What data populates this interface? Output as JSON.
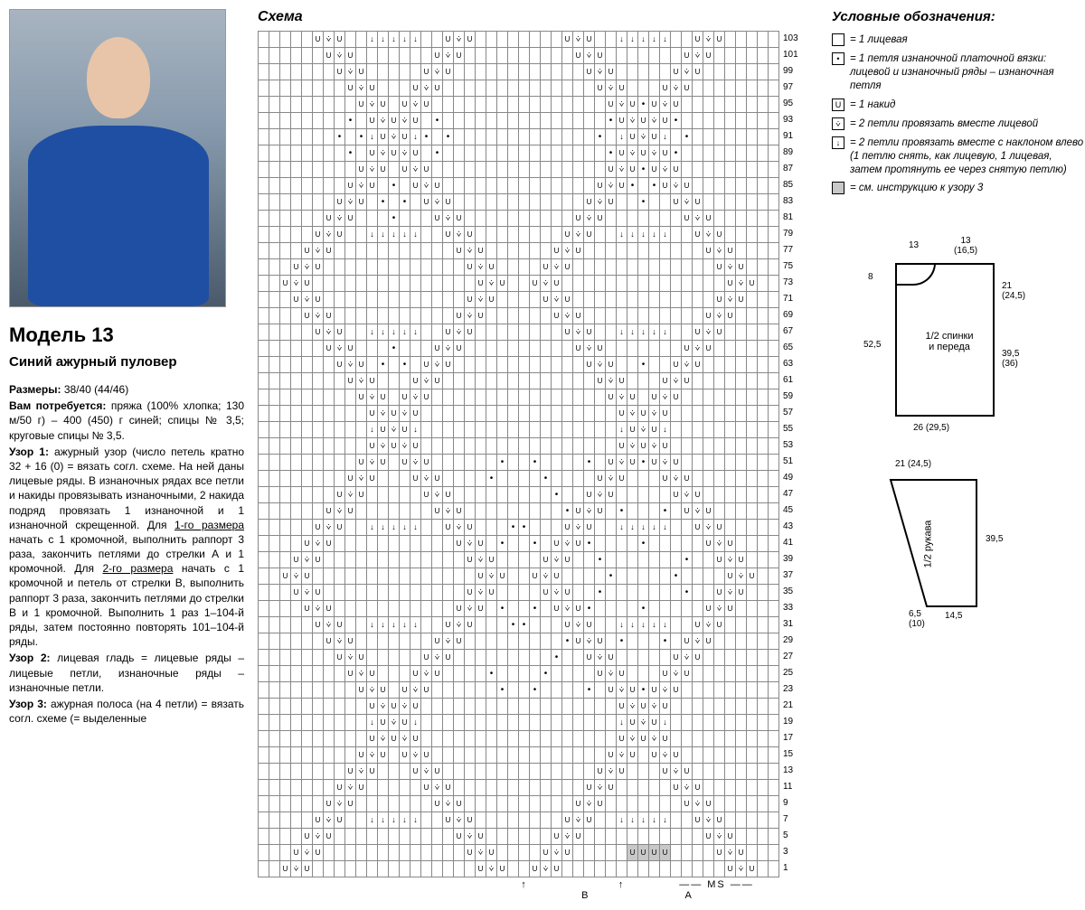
{
  "left": {
    "model_title": "Модель 13",
    "subtitle": "Синий ажурный пуловер",
    "sizes_label": "Размеры:",
    "sizes": "38/40 (44/46)",
    "need_label": "Вам потребуется:",
    "need_text": "пряжа (100% хлопка; 130 м/50 г) – 400 (450) г синей; спицы № 3,5; круговые спицы № 3,5.",
    "uzor1_label": "Узор 1:",
    "uzor1_text": "ажурный узор (число петель кратно 32 + 16 (0) = вязать согл. схеме. На ней даны лицевые ряды. В изнаночных рядах все петли и накиды провязывать изнаночными, 2 накида подряд провязать 1 изнаночной и 1 изнаночной скрещенной. Для ",
    "size1_u": "1-го размера",
    "uzor1_text2": " начать с 1 кромочной, выполнить раппорт 3 раза, закончить петлями до стрелки А и 1 кромочной. Для ",
    "size2_u": "2-го размера",
    "uzor1_text3": " начать с 1 кромочной и петель от стрелки В, выполнить раппорт 3 раза, закончить петлями до стрелки В и 1 кромочной. Выполнить 1 раз 1–104-й ряды, затем постоянно повторять 101–104-й ряды.",
    "uzor2_label": "Узор 2:",
    "uzor2_text": "лицевая гладь = лицевые ряды – лицевые петли, изнаночные ряды – изнаночные петли.",
    "uzor3_label": "Узор 3:",
    "uzor3_text": "ажурная полоса (на 4 петли) = вязать согл. схеме (= выделенные"
  },
  "center": {
    "title": "Схема",
    "row_numbers": [
      103,
      101,
      99,
      97,
      95,
      93,
      91,
      89,
      87,
      85,
      83,
      81,
      79,
      77,
      75,
      73,
      71,
      69,
      67,
      65,
      63,
      61,
      59,
      57,
      55,
      53,
      51,
      49,
      47,
      45,
      43,
      41,
      39,
      37,
      35,
      33,
      31,
      29,
      27,
      25,
      23,
      21,
      19,
      17,
      15,
      13,
      11,
      9,
      7,
      5,
      3,
      1
    ],
    "ms_label": "MS",
    "arrow_a": "A",
    "arrow_b": "B"
  },
  "legend": {
    "title": "Условные обозначения:",
    "items": [
      {
        "sym": "",
        "text": "= 1 лицевая"
      },
      {
        "sym": "•",
        "text": "= 1 петля изнаночной платочной вязки: лицевой и изнаночный ряды – изнаночная петля"
      },
      {
        "sym": "U",
        "text": "= 1 накид"
      },
      {
        "sym": "⩒",
        "text": "= 2 петли провязать вместе лицевой"
      },
      {
        "sym": "↓",
        "text": "= 2 петли провязать вместе с наклоном влево (1 петлю снять, как лицевую, 1 лицевая, затем протянуть ее через снятую петлю)"
      },
      {
        "sym": "",
        "gray": true,
        "text": "= см. инструкцию к узору 3"
      }
    ]
  },
  "schematic": {
    "body": {
      "top_left": "13",
      "top_right": "13\n(16,5)",
      "left_top": "8",
      "left_main": "52,5",
      "right_top": "21\n(24,5)",
      "right_main": "39,5\n(36)",
      "bottom": "26 (29,5)",
      "label": "1/2 спинки\nи переда"
    },
    "sleeve": {
      "top": "21 (24,5)",
      "right": "39,5",
      "bottom_left": "6,5\n(10)",
      "bottom_right": "14,5",
      "label": "1/2 рукава"
    }
  }
}
